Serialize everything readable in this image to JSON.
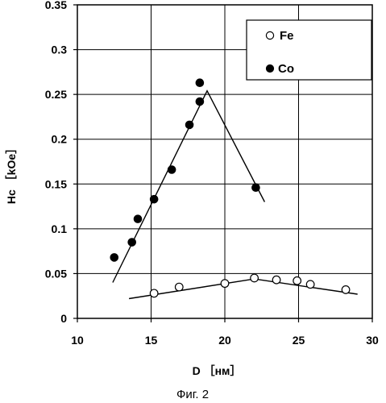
{
  "chart_data": {
    "type": "scatter",
    "xlabel": "D ［нм］",
    "ylabel": "Hc ［kOe］",
    "caption": "Фиг. 2",
    "xlim": [
      10,
      30
    ],
    "ylim": [
      0,
      0.35
    ],
    "x_ticks": [
      "10",
      "15",
      "20",
      "25",
      "30"
    ],
    "y_ticks": [
      "0",
      "0.05",
      "0.1",
      "0.15",
      "0.2",
      "0.25",
      "0.3",
      "0.35"
    ],
    "grid": true,
    "legend_position": "top-right",
    "series": [
      {
        "name": "Fe",
        "marker": "open-circle",
        "points": [
          {
            "x": 15.2,
            "y": 0.028
          },
          {
            "x": 16.9,
            "y": 0.035
          },
          {
            "x": 20.0,
            "y": 0.039
          },
          {
            "x": 22.0,
            "y": 0.045
          },
          {
            "x": 23.5,
            "y": 0.043
          },
          {
            "x": 24.9,
            "y": 0.042
          },
          {
            "x": 25.8,
            "y": 0.038
          },
          {
            "x": 28.2,
            "y": 0.032
          }
        ],
        "trend": [
          {
            "x": 13.5,
            "y": 0.022
          },
          {
            "x": 22.0,
            "y": 0.044
          },
          {
            "x": 29.0,
            "y": 0.027
          }
        ]
      },
      {
        "name": "Co",
        "marker": "filled-circle",
        "points": [
          {
            "x": 12.5,
            "y": 0.068
          },
          {
            "x": 13.7,
            "y": 0.085
          },
          {
            "x": 14.1,
            "y": 0.111
          },
          {
            "x": 15.2,
            "y": 0.133
          },
          {
            "x": 16.4,
            "y": 0.166
          },
          {
            "x": 17.6,
            "y": 0.216
          },
          {
            "x": 18.3,
            "y": 0.242
          },
          {
            "x": 18.3,
            "y": 0.263
          },
          {
            "x": 22.1,
            "y": 0.146
          }
        ],
        "trend": [
          {
            "x": 12.4,
            "y": 0.04
          },
          {
            "x": 18.8,
            "y": 0.254
          },
          {
            "x": 22.7,
            "y": 0.13
          }
        ]
      }
    ]
  }
}
